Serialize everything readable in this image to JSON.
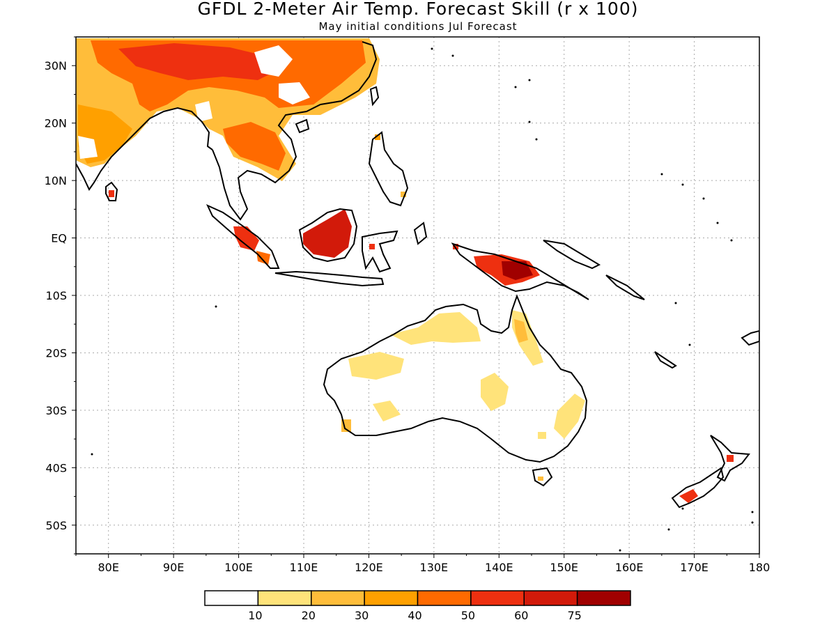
{
  "title": "GFDL 2-Meter Air Temp. Forecast Skill (r x 100)",
  "subtitle": "May initial conditions  Jul Forecast",
  "map": {
    "lon_range": [
      75,
      180
    ],
    "lat_range": [
      -55,
      35
    ],
    "x_ticks": [
      "80E",
      "90E",
      "100E",
      "110E",
      "120E",
      "130E",
      "140E",
      "150E",
      "160E",
      "170E",
      "180"
    ],
    "y_ticks": [
      "30N",
      "20N",
      "10N",
      "EQ",
      "10S",
      "20S",
      "30S",
      "40S",
      "50S"
    ],
    "grid": "dotted"
  },
  "colorbar": {
    "colors": [
      "#ffffff",
      "#ffe37a",
      "#ffbd3a",
      "#ffa000",
      "#ff6a00",
      "#ee3010",
      "#d21a0a",
      "#a00000"
    ],
    "labels": [
      "10",
      "20",
      "30",
      "40",
      "50",
      "60",
      "75"
    ]
  }
}
